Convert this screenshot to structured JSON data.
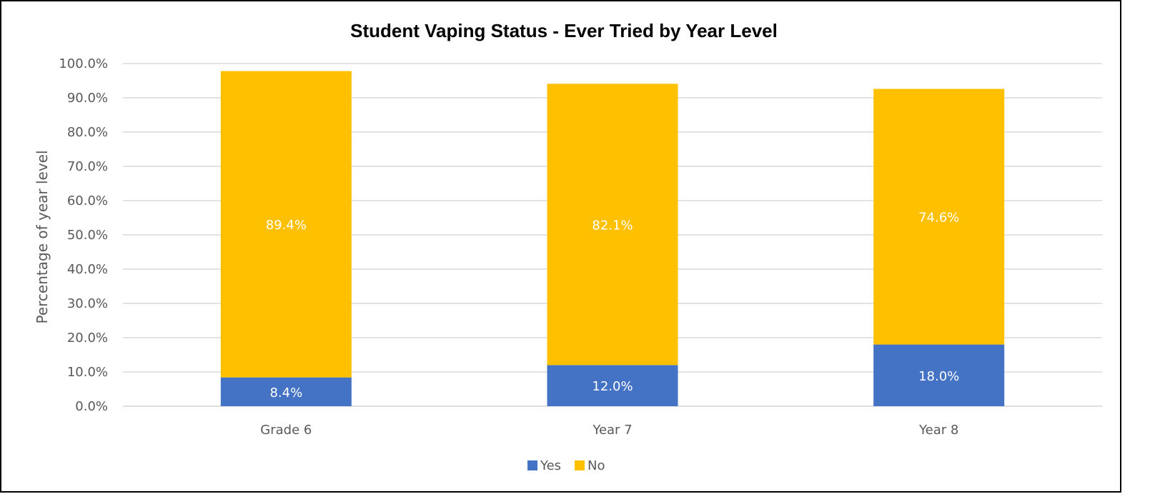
{
  "chart_data": {
    "type": "bar",
    "stacked": true,
    "title": "Student Vaping Status - Ever Tried by Year Level",
    "xlabel": "",
    "ylabel": "Percentage of year level",
    "categories": [
      "Grade 6",
      "Year 7",
      "Year 8"
    ],
    "series": [
      {
        "name": "Yes",
        "color": "#4472C4",
        "values": [
          8.4,
          12.0,
          18.0
        ],
        "labels": [
          "8.4%",
          "12.0%",
          "18.0%"
        ]
      },
      {
        "name": "No",
        "color": "#FFC000",
        "values": [
          89.4,
          82.1,
          74.6
        ],
        "labels": [
          "89.4%",
          "82.1%",
          "74.6%"
        ]
      }
    ],
    "ylim": [
      0,
      100
    ],
    "yticks": [
      "0.0%",
      "10.0%",
      "20.0%",
      "30.0%",
      "40.0%",
      "50.0%",
      "60.0%",
      "70.0%",
      "80.0%",
      "90.0%",
      "100.0%"
    ],
    "grid": true,
    "legend": "bottom"
  }
}
